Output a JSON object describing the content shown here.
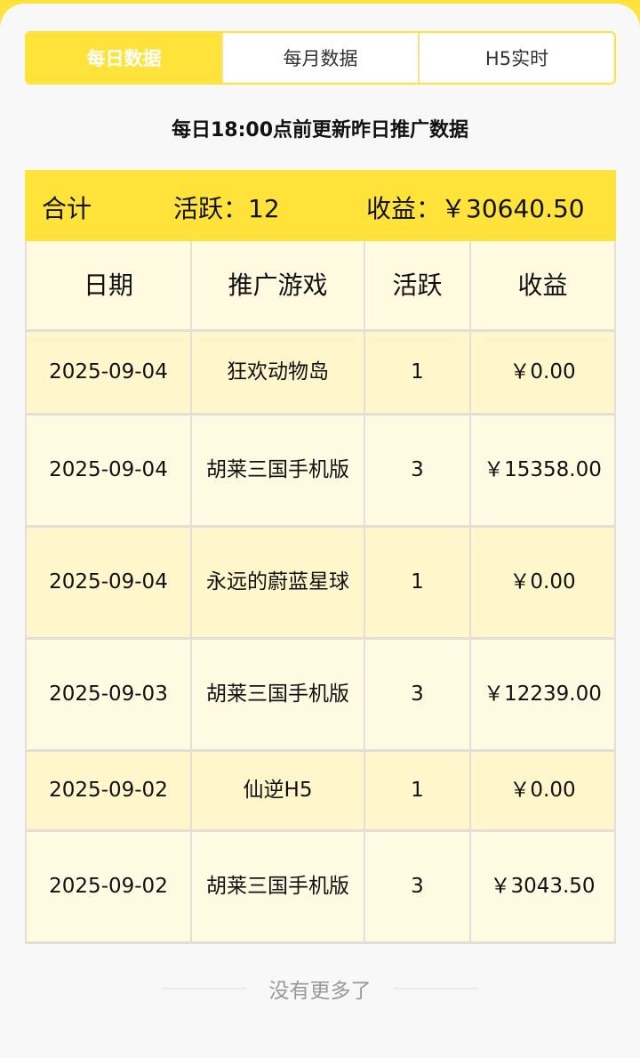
{
  "tabs": [
    "每日数据",
    "每月数据",
    "H5实时"
  ],
  "active_tab": "每日数据",
  "subtitle": "每日18:00点前更新昨日推广数据",
  "summary": {
    "label": "合计",
    "active": "活跃：12",
    "income": "收益：￥30640.50"
  },
  "columns": [
    "日期",
    "推广游戏",
    "活跃",
    "收益"
  ],
  "rows": [
    [
      "2025-09-04",
      "狂欢动物岛",
      "1",
      "￥0.00"
    ],
    [
      "2025-09-04",
      "胡莱三国手机版",
      "3",
      "￥15358.00"
    ],
    [
      "2025-09-04",
      "永远的蔚蓝星球",
      "1",
      "￥0.00"
    ],
    [
      "2025-09-03",
      "胡莱三国手机版",
      "3",
      "￥12239.00"
    ],
    [
      "2025-09-02",
      "仙逆H5",
      "1",
      "￥0.00"
    ],
    [
      "2025-09-02",
      "胡莱三国手机版",
      "3",
      "￥3043.50"
    ]
  ],
  "footer": "没有更多了",
  "colors": {
    "accent": "#ffe23a",
    "row_odd": "#fff6cc",
    "row_even": "#fffbe3"
  }
}
